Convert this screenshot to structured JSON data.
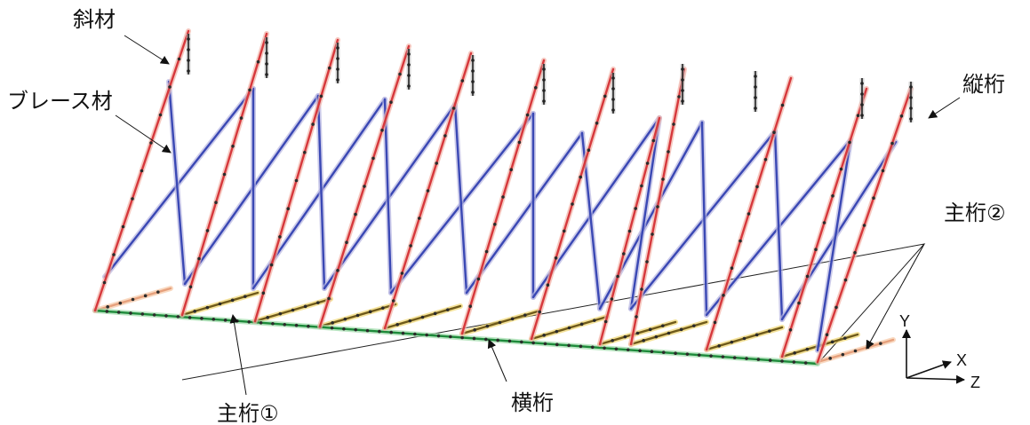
{
  "labels": {
    "diagonal": "斜材",
    "brace": "ブレース材",
    "stringer": "縦桁",
    "girder2": "主桁②",
    "girder1": "主桁①",
    "cross_girder": "横桁"
  },
  "axes": {
    "x": "X",
    "y": "Y",
    "z": "Z"
  },
  "colors": {
    "diagonal": "#d6383c",
    "diagonal_glow": "#f3b3a8",
    "brace": "#3a48b4",
    "brace_glow": "#b7b6e2",
    "girder1": "#1d8a3a",
    "girder1_glow": "#9fdcaa",
    "girder2": "#e6a07c",
    "cross": "#6f5a1a",
    "cross_glow": "#f0d670",
    "stringer": "#222222",
    "node": "#2b2b2b",
    "leader": "#111111"
  }
}
